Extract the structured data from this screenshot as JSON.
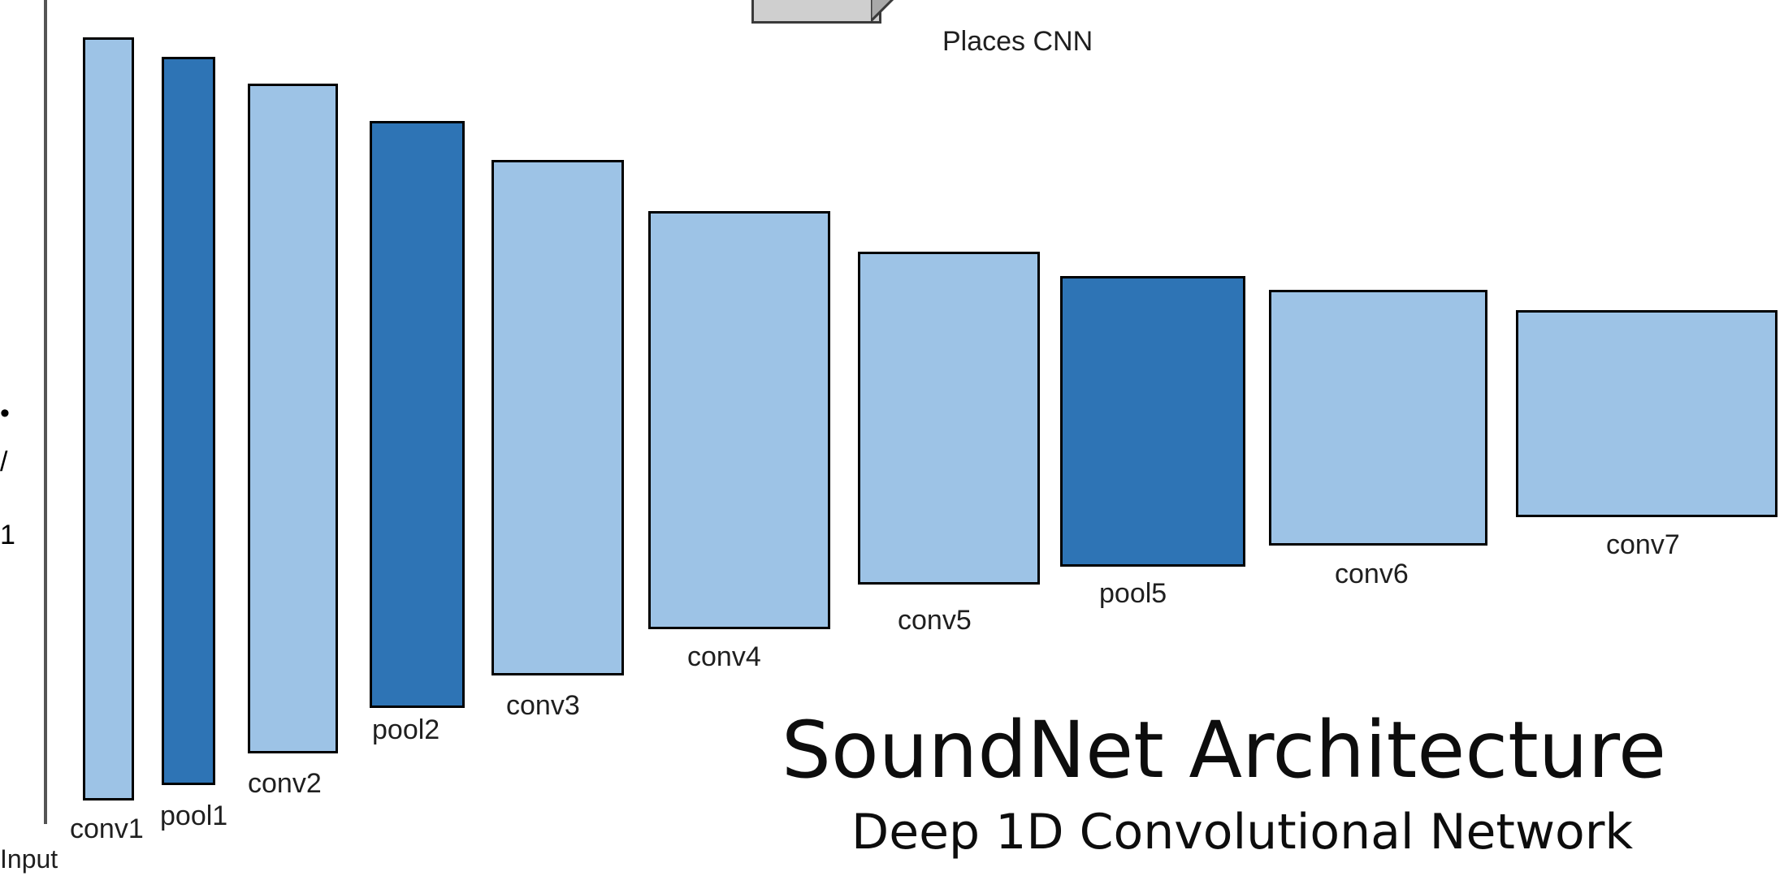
{
  "header": {
    "places_label": "Places CNN"
  },
  "input_label": "Input",
  "left_edge_glyphs": [
    "•",
    "/",
    "1"
  ],
  "layers": [
    {
      "name": "conv1",
      "kind": "conv"
    },
    {
      "name": "pool1",
      "kind": "pool"
    },
    {
      "name": "conv2",
      "kind": "conv"
    },
    {
      "name": "pool2",
      "kind": "pool"
    },
    {
      "name": "conv3",
      "kind": "conv"
    },
    {
      "name": "conv4",
      "kind": "conv"
    },
    {
      "name": "conv5",
      "kind": "conv"
    },
    {
      "name": "pool5",
      "kind": "pool"
    },
    {
      "name": "conv6",
      "kind": "conv"
    },
    {
      "name": "conv7",
      "kind": "conv"
    }
  ],
  "title": "SoundNet Architecture",
  "subtitle": "Deep 1D Convolutional Network",
  "colors": {
    "conv": "#9dc3e6",
    "pool": "#2e74b5",
    "border": "#000000"
  }
}
